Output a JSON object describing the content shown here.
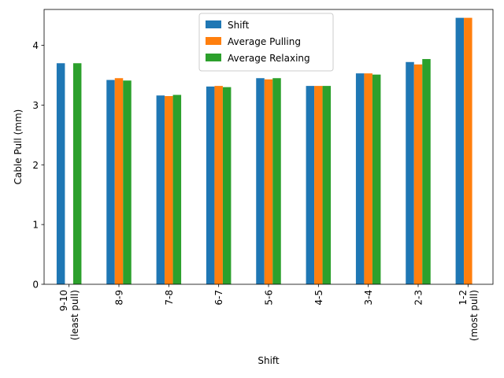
{
  "chart_data": {
    "type": "bar",
    "title": "",
    "xlabel": "Shift",
    "ylabel": "Cable Pull (mm)",
    "ylim": [
      0,
      4.6
    ],
    "yticks": [
      0,
      1,
      2,
      3,
      4
    ],
    "categories": [
      [
        "9-10",
        "(least pull)"
      ],
      [
        "8-9"
      ],
      [
        "7-8"
      ],
      [
        "6-7"
      ],
      [
        "5-6"
      ],
      [
        "4-5"
      ],
      [
        "3-4"
      ],
      [
        "2-3"
      ],
      [
        "1-2",
        "(most pull)"
      ]
    ],
    "series": [
      {
        "name": "Shift",
        "color": "#1f77b4",
        "values": [
          3.7,
          3.42,
          3.16,
          3.31,
          3.45,
          3.32,
          3.53,
          3.72,
          4.46
        ]
      },
      {
        "name": "Average Pulling",
        "color": "#ff7f0e",
        "values": [
          null,
          3.45,
          3.15,
          3.32,
          3.43,
          3.32,
          3.53,
          3.68,
          4.46
        ]
      },
      {
        "name": "Average Relaxing",
        "color": "#2ca02c",
        "values": [
          3.7,
          3.41,
          3.17,
          3.3,
          3.45,
          3.32,
          3.51,
          3.77,
          null
        ]
      }
    ],
    "legend": {
      "position": "upper center"
    },
    "grid": false
  }
}
